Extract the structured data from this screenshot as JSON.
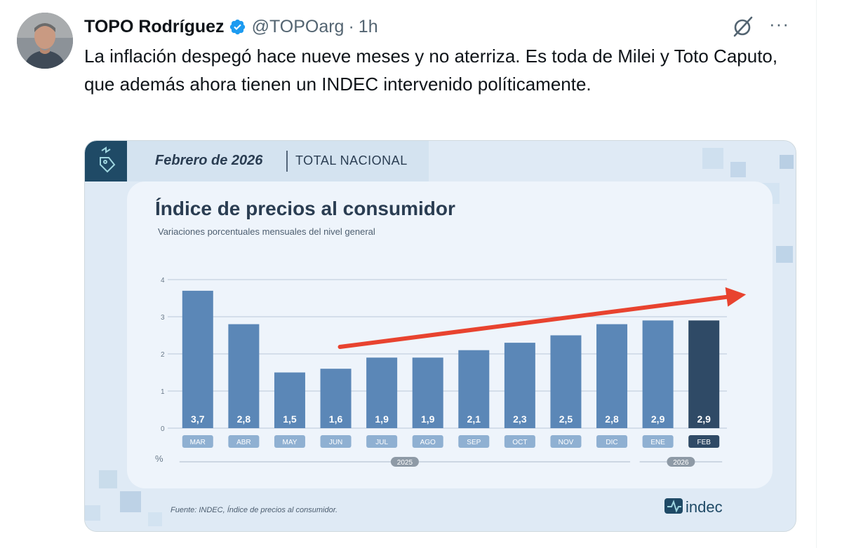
{
  "tweet": {
    "author_name": "TOPO Rodríguez",
    "handle": "@TOPOarg",
    "separator": "·",
    "time": "1h",
    "text": "La inflación despegó hace nueve meses y no aterriza. Es toda de Milei y Toto Caputo, que además ahora tienen un INDEC intervenido políticamente.",
    "more_label": "···"
  },
  "infographic": {
    "date_label": "Febrero de 2026",
    "scope_label": "TOTAL NACIONAL",
    "source": "Fuente: INDEC, Índice de precios al consumidor.",
    "logo_text": "indec",
    "colors": {
      "bar": "#5b87b7",
      "bar_last": "#2f4a66",
      "arrow": "#e8432f",
      "card_bg": "#eef4fb"
    }
  },
  "chart_data": {
    "type": "bar",
    "title": "Índice de precios al consumidor",
    "subtitle": "Variaciones porcentuales mensuales del nivel general",
    "ylabel": "%",
    "ylim": [
      0,
      4
    ],
    "yticks": [
      "0",
      "1",
      "2",
      "3",
      "4"
    ],
    "grid": true,
    "categories": [
      "MAR",
      "ABR",
      "MAY",
      "JUN",
      "JUL",
      "AGO",
      "SEP",
      "OCT",
      "NOV",
      "DIC",
      "ENE",
      "FEB"
    ],
    "values": [
      3.7,
      2.8,
      1.5,
      1.6,
      1.9,
      1.9,
      2.1,
      2.3,
      2.5,
      2.8,
      2.9,
      2.9
    ],
    "value_labels": [
      "3,7",
      "2,8",
      "1,5",
      "1,6",
      "1,9",
      "1,9",
      "2,1",
      "2,3",
      "2,5",
      "2,8",
      "2,9",
      "2,9"
    ],
    "year_groups": [
      {
        "label": "2025",
        "from": 0,
        "to": 9
      },
      {
        "label": "2026",
        "from": 10,
        "to": 11
      }
    ],
    "highlight_index": 11,
    "trend_arrow": {
      "from_index": 3,
      "to_index": 11,
      "from_value": 2.0,
      "to_value": 3.6
    }
  }
}
